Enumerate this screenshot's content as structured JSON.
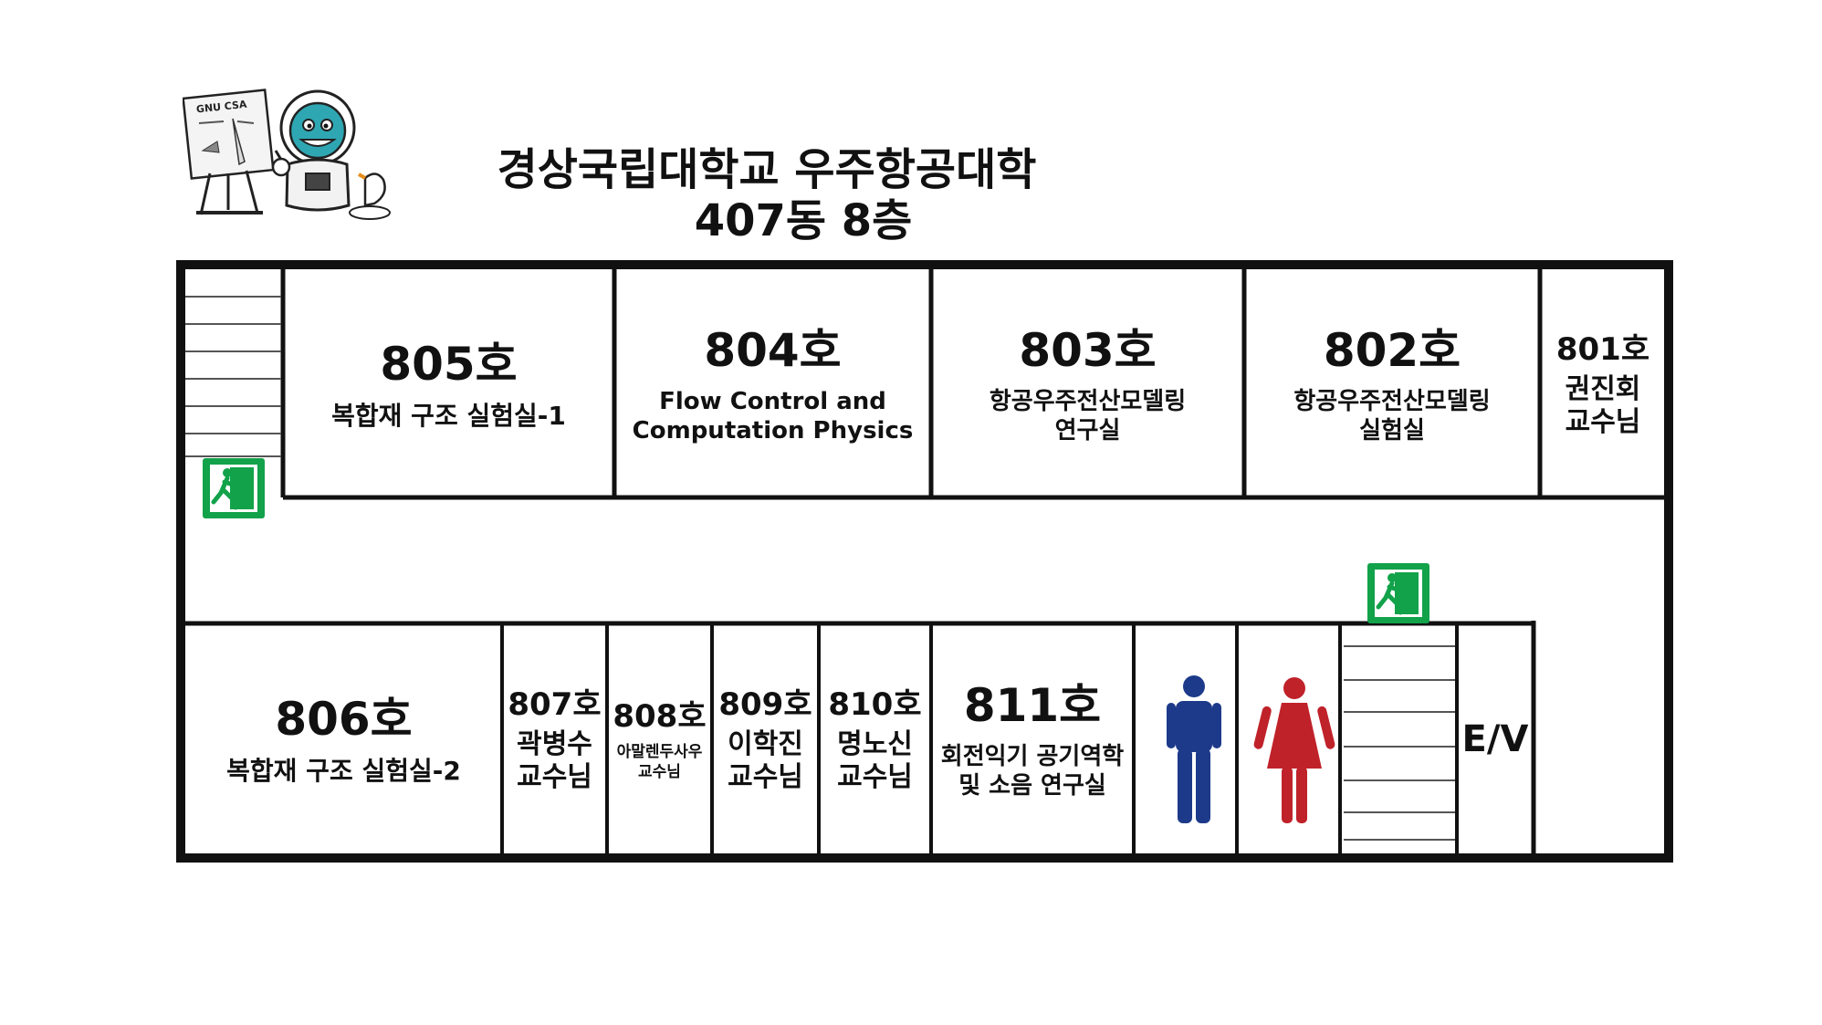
{
  "title": {
    "line1": "경상국립대학교 우주항공대학",
    "line2": "407동 8층"
  },
  "mascot": {
    "board_label": "GNU CSA"
  },
  "rooms_top": [
    {
      "number": "805호",
      "desc": [
        "복합재 구조 실험실-1"
      ]
    },
    {
      "number": "804호",
      "desc": [
        "Flow Control and",
        "Computation Physics"
      ]
    },
    {
      "number": "803호",
      "desc": [
        "항공우주전산모델링",
        "연구실"
      ]
    },
    {
      "number": "802호",
      "desc": [
        "항공우주전산모델링",
        "실험실"
      ]
    },
    {
      "number": "801호",
      "desc": [
        "권진회",
        "교수님"
      ]
    }
  ],
  "rooms_bottom": [
    {
      "number": "806호",
      "desc": [
        "복합재 구조 실험실-2"
      ]
    },
    {
      "number": "807호",
      "desc": [
        "곽병수",
        "교수님"
      ]
    },
    {
      "number": "808호",
      "desc": [
        "아말렌두사우",
        "교수님"
      ]
    },
    {
      "number": "809호",
      "desc": [
        "이학진",
        "교수님"
      ]
    },
    {
      "number": "810호",
      "desc": [
        "명노신",
        "교수님"
      ]
    },
    {
      "number": "811호",
      "desc": [
        "회전익기 공기역학",
        "및 소음 연구실"
      ]
    }
  ],
  "elevator_label": "E/V",
  "icons": {
    "exit": "emergency-exit-icon",
    "male_restroom": "male-restroom-icon",
    "female_restroom": "female-restroom-icon",
    "stairs": "stairs-icon"
  },
  "colors": {
    "exit_green": "#12a24a",
    "male_blue": "#1d3a8a",
    "female_red": "#c0222a",
    "wall": "#111111"
  }
}
